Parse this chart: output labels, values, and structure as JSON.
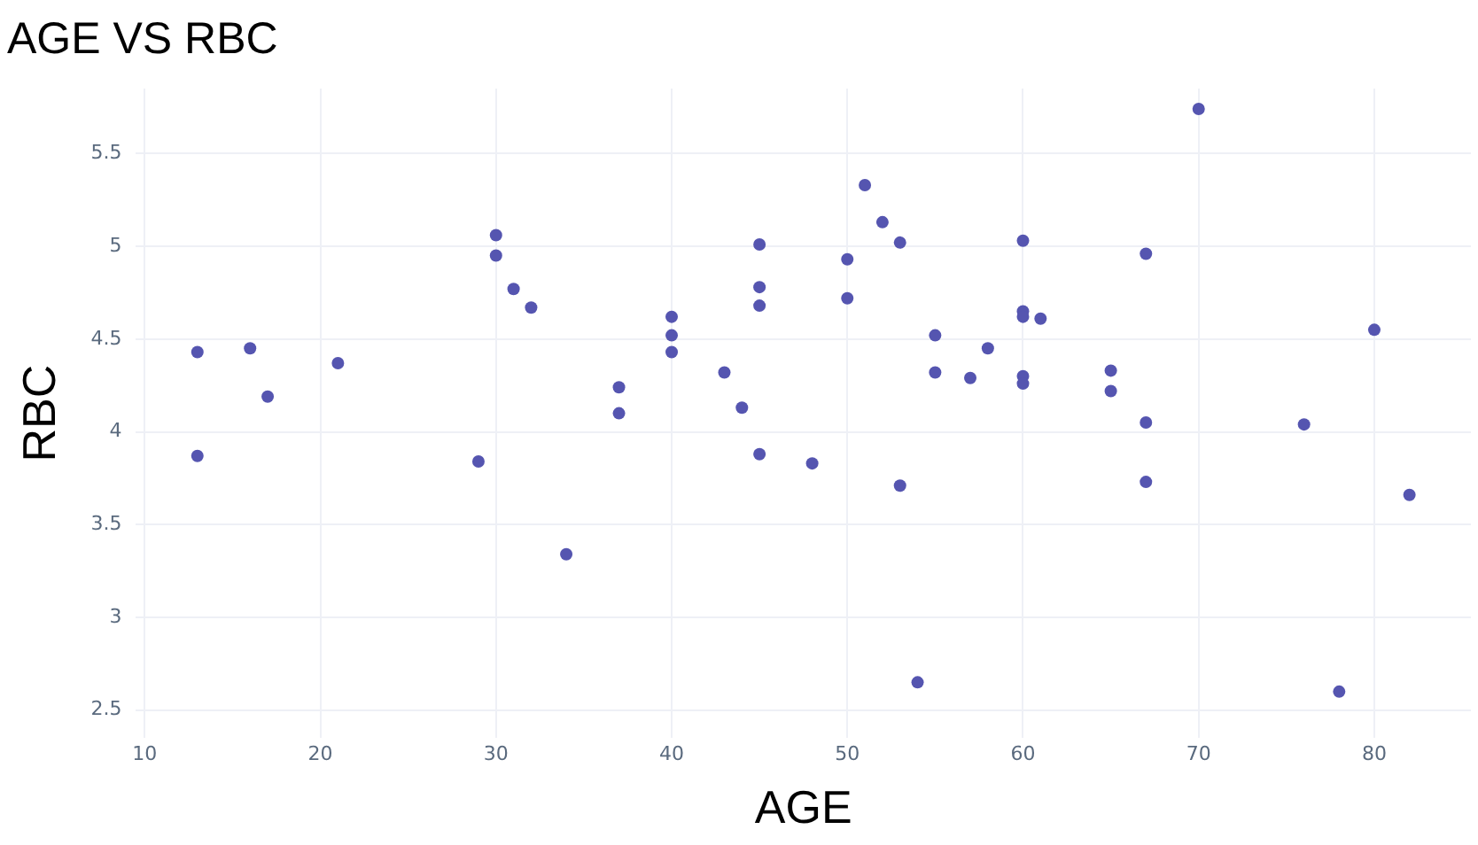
{
  "chart_data": {
    "type": "scatter",
    "title": "AGE VS RBC",
    "xlabel": "AGE",
    "ylabel": "RBC",
    "x": [
      13,
      13,
      16,
      17,
      21,
      29,
      30,
      30,
      31,
      32,
      34,
      37,
      37,
      40,
      40,
      40,
      43,
      44,
      45,
      45,
      45,
      45,
      48,
      50,
      50,
      51,
      52,
      53,
      53,
      54,
      55,
      55,
      57,
      58,
      60,
      60,
      60,
      60,
      60,
      61,
      65,
      65,
      67,
      67,
      67,
      70,
      76,
      78,
      80,
      82
    ],
    "series": [
      {
        "color": "#5555b0",
        "values": [
          4.43,
          3.87,
          4.45,
          4.19,
          4.37,
          3.84,
          5.06,
          4.95,
          4.77,
          4.67,
          3.34,
          4.24,
          4.1,
          4.62,
          4.52,
          4.43,
          4.32,
          4.13,
          5.01,
          4.78,
          4.68,
          3.88,
          3.83,
          4.93,
          4.72,
          5.33,
          5.13,
          5.02,
          3.71,
          2.65,
          4.52,
          4.32,
          4.29,
          4.45,
          5.03,
          4.65,
          4.62,
          4.3,
          4.26,
          4.61,
          4.33,
          4.22,
          4.96,
          4.05,
          3.73,
          5.74,
          4.04,
          2.6,
          4.55,
          3.66
        ]
      }
    ],
    "xlim": [
      9.5,
      85.5
    ],
    "xticks": [
      10,
      20,
      30,
      40,
      50,
      60,
      70,
      80
    ],
    "ylim": [
      2.35,
      5.85
    ],
    "yticks": [
      2.5,
      3,
      3.5,
      4,
      4.5,
      5,
      5.5
    ],
    "grid": true,
    "legend": false,
    "marker": "circle"
  }
}
